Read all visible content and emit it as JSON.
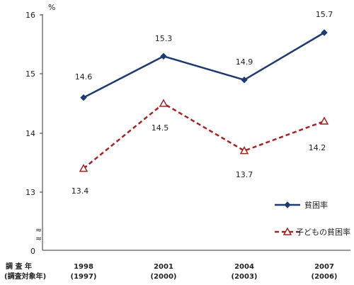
{
  "chart_data": {
    "type": "line",
    "unit": "%",
    "categories": [
      "1998",
      "2001",
      "2004",
      "2007"
    ],
    "sub_categories": [
      "(1997)",
      "(2000)",
      "(2003)",
      "(2006)"
    ],
    "row_label_1": "調 査 年",
    "row_label_2": "(調査対象年)",
    "y_ticks": [
      "16",
      "15",
      "14",
      "13",
      "0"
    ],
    "ylim": [
      13,
      16
    ],
    "axis_break": "≈",
    "series": [
      {
        "name": "貧困率",
        "values": [
          14.6,
          15.3,
          14.9,
          15.7
        ],
        "color": "#1f3a6e",
        "marker": "diamond",
        "dash": "solid"
      },
      {
        "name": "子どもの貧困率",
        "values": [
          13.4,
          14.5,
          13.7,
          14.2
        ],
        "color": "#a52323",
        "marker": "triangle",
        "dash": "dashed"
      }
    ],
    "data_labels": {
      "series0": [
        "14.6",
        "15.3",
        "14.9",
        "15.7"
      ],
      "series1": [
        "13.4",
        "14.5",
        "13.7",
        "14.2"
      ]
    }
  }
}
